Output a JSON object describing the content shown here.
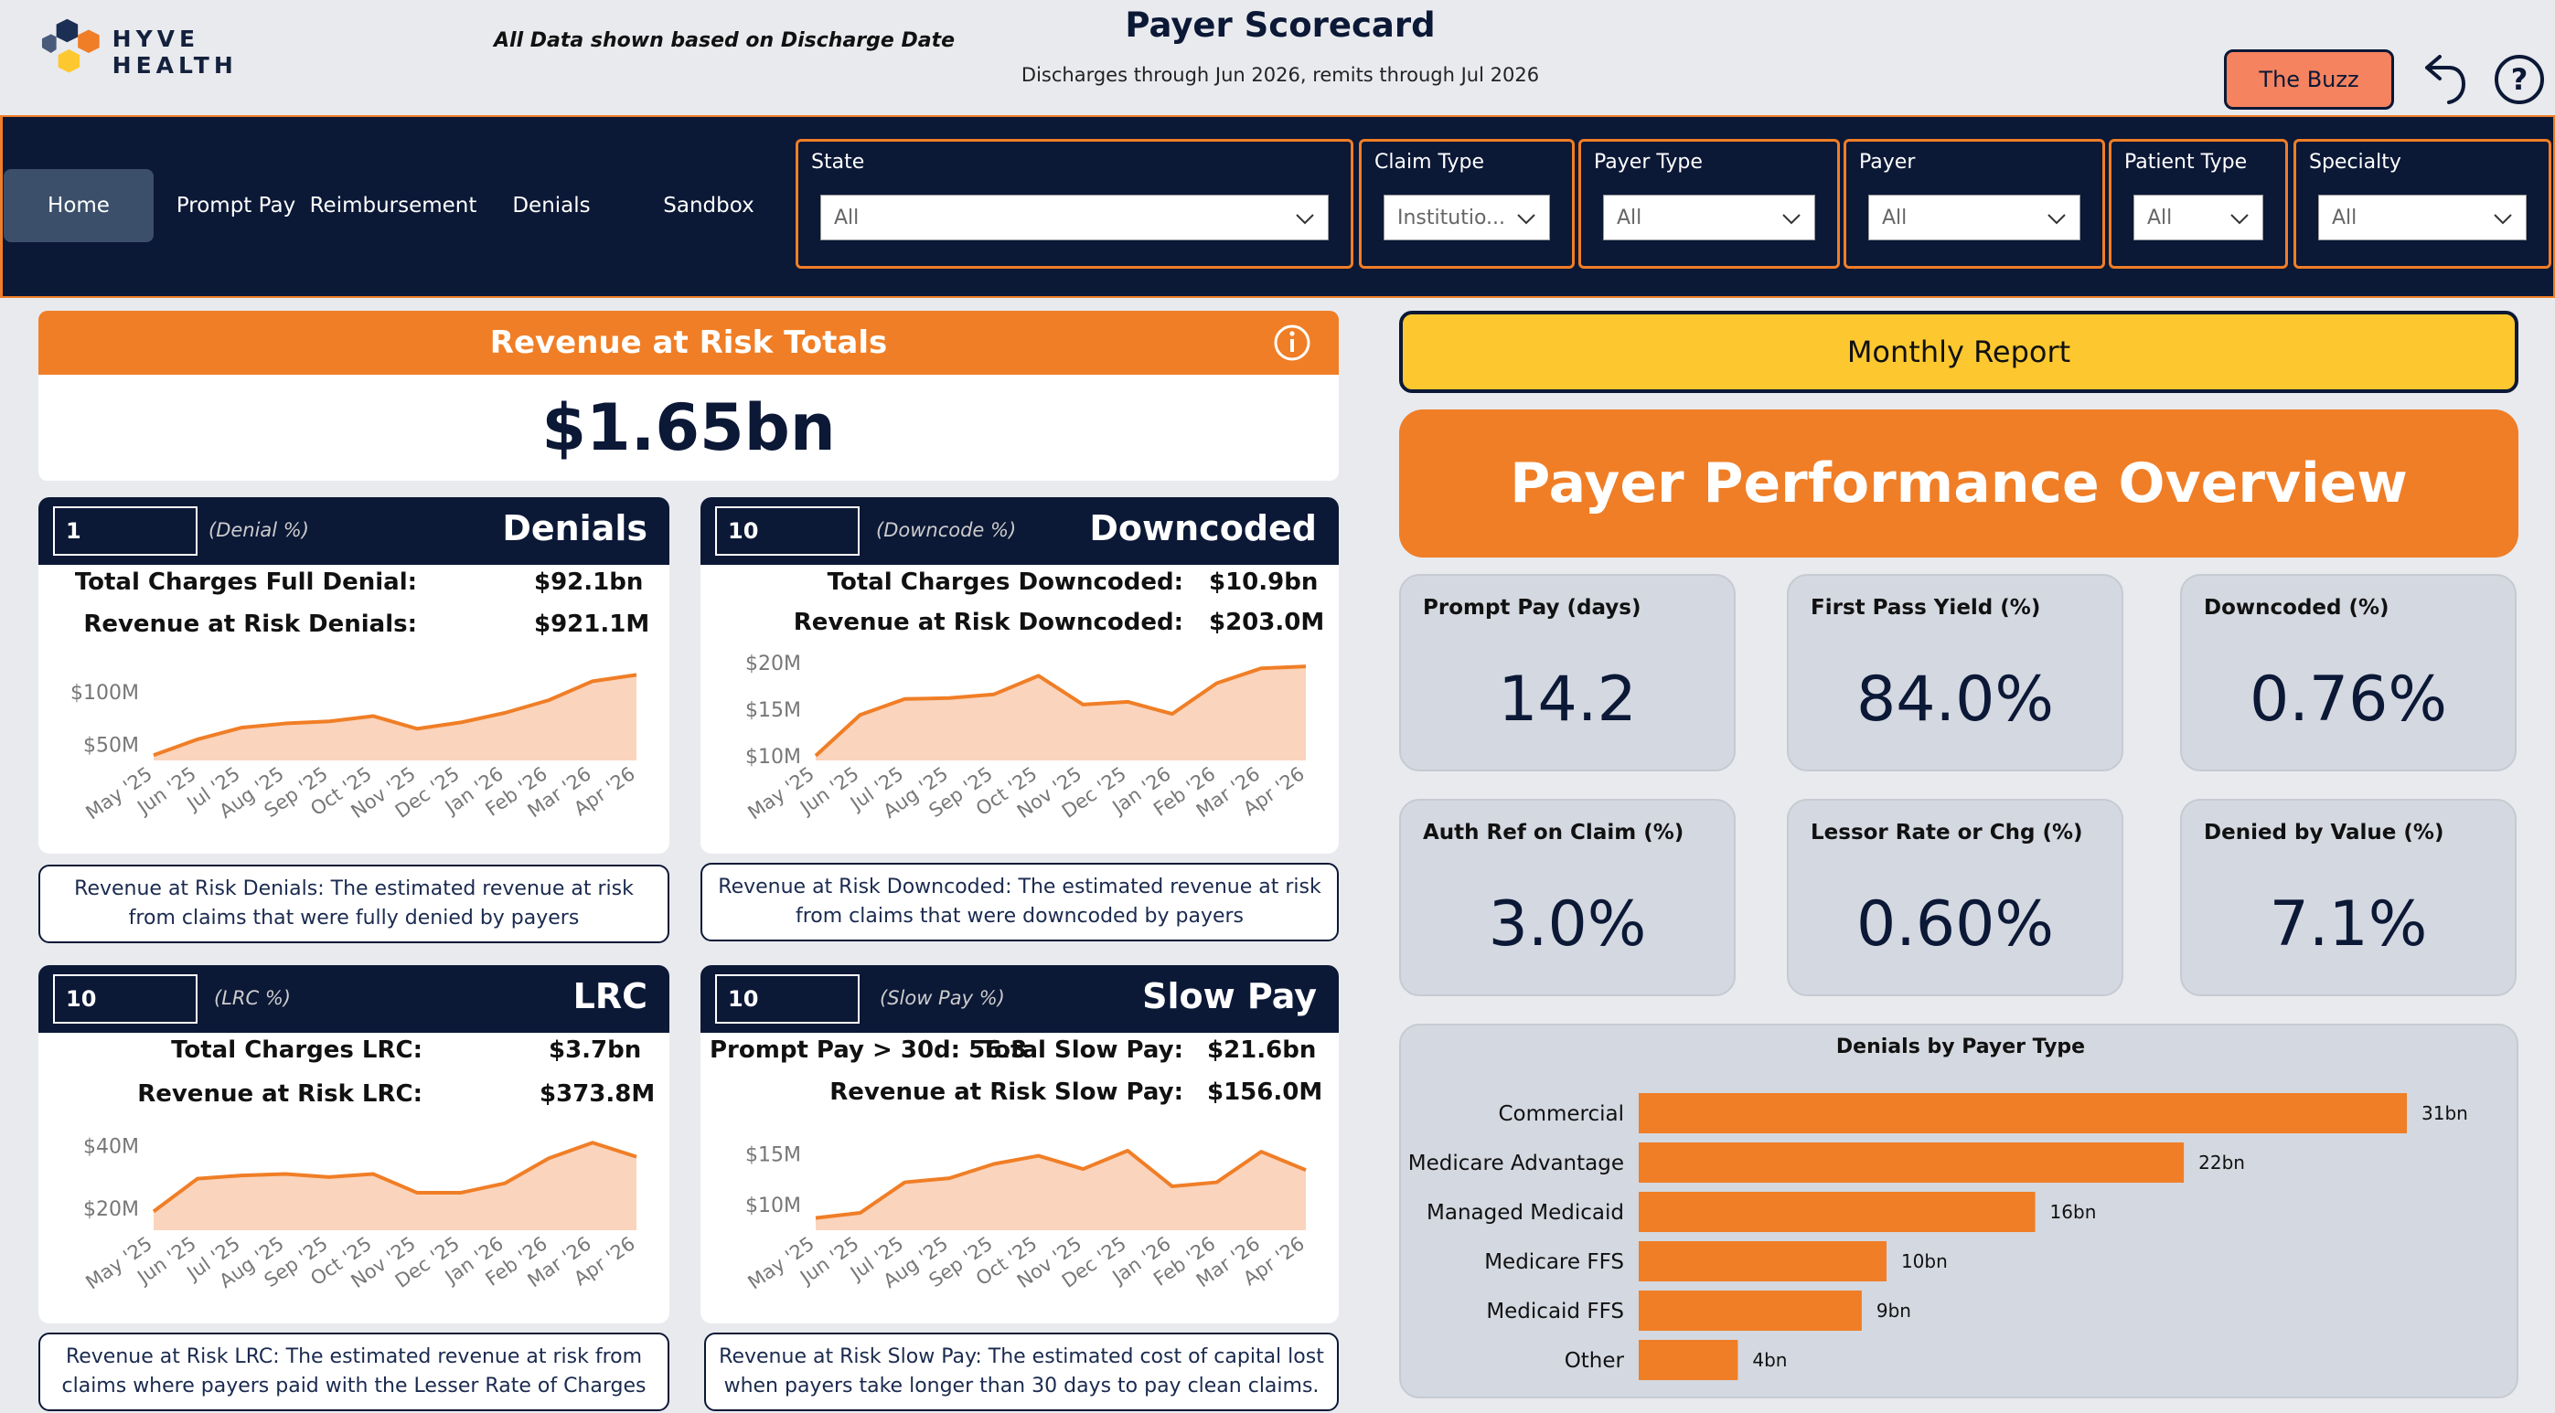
{
  "header": {
    "brand": "HYVE HEALTH",
    "data_note": "All Data shown based on Discharge Date",
    "title": "Payer Scorecard",
    "subtitle": "Discharges through Jun 2026, remits through Jul 2026",
    "buzz_button": "The Buzz"
  },
  "nav": {
    "items": [
      {
        "label": "Home",
        "active": true
      },
      {
        "label": "Prompt Pay"
      },
      {
        "label": "Reimbursement"
      },
      {
        "label": "Denials"
      },
      {
        "label": "Sandbox"
      }
    ]
  },
  "filters": [
    {
      "label": "State",
      "value": "All"
    },
    {
      "label": "Claim Type",
      "value": "Institutio..."
    },
    {
      "label": "Payer Type",
      "value": "All"
    },
    {
      "label": "Payer",
      "value": "All"
    },
    {
      "label": "Patient Type",
      "value": "All"
    },
    {
      "label": "Specialty",
      "value": "All"
    }
  ],
  "revenue_at_risk": {
    "title": "Revenue at Risk Totals",
    "total": "$1.65bn"
  },
  "cards": {
    "denials": {
      "input": "1",
      "sub": "(Denial %)",
      "title": "Denials",
      "stat1_label": "Total Charges Full Denial:",
      "stat1_value": "$92.1bn",
      "stat2_label": "Revenue at Risk Denials:",
      "stat2_value": "$921.1M",
      "desc": "Revenue at Risk Denials: The estimated revenue at risk from claims that were fully denied by payers"
    },
    "downcoded": {
      "input": "10",
      "sub": "(Downcode %)",
      "title": "Downcoded",
      "stat1_label": "Total Charges Downcoded:",
      "stat1_value": "$10.9bn",
      "stat2_label": "Revenue at Risk Downcoded:",
      "stat2_value": "$203.0M",
      "desc": "Revenue at Risk Downcoded: The estimated revenue at risk from claims that were downcoded by payers"
    },
    "lrc": {
      "input": "10",
      "sub": "(LRC %)",
      "title": "LRC",
      "stat1_label": "Total Charges LRC:",
      "stat1_value": "$3.7bn",
      "stat2_label": "Revenue at Risk LRC:",
      "stat2_value": "$373.8M",
      "desc": "Revenue at Risk LRC: The estimated revenue at risk from claims where payers paid with the Lesser Rate of Charges"
    },
    "slowpay": {
      "input": "10",
      "sub": "(Slow Pay %)",
      "title": "Slow Pay",
      "stat0_label": "Prompt Pay > 30d: 56.3",
      "stat1_label": "Total Slow Pay:",
      "stat1_value": "$21.6bn",
      "stat2_label": "Revenue at Risk Slow Pay:",
      "stat2_value": "$156.0M",
      "desc": "Revenue at Risk Slow Pay: The estimated cost of capital lost when payers take longer than 30 days to pay clean claims."
    }
  },
  "monthly_report_button": "Monthly Report",
  "overview_title": "Payer Performance Overview",
  "kpis": [
    {
      "label": "Prompt Pay (days)",
      "value": "14.2"
    },
    {
      "label": "First Pass Yield (%)",
      "value": "84.0%"
    },
    {
      "label": "Downcoded (%)",
      "value": "0.76%"
    },
    {
      "label": "Auth Ref on Claim (%)",
      "value": "3.0%"
    },
    {
      "label": "Lessor Rate or Chg (%)",
      "value": "0.60%"
    },
    {
      "label": "Denied by Value (%)",
      "value": "7.1%"
    }
  ],
  "colors": {
    "navy": "#0b1836",
    "orange": "#f07e26",
    "area_fill": "#fad4bd",
    "yellow": "#fdc82f"
  },
  "chart_data": [
    {
      "id": "denials",
      "type": "area",
      "x": [
        "May '25",
        "Jun '25",
        "Jul '25",
        "Aug '25",
        "Sep '25",
        "Oct '25",
        "Nov '25",
        "Dec '25",
        "Jan '26",
        "Feb '26",
        "Mar '26",
        "Apr '26"
      ],
      "y": [
        40,
        55,
        66,
        70,
        72,
        77,
        65,
        71,
        80,
        92,
        110,
        116
      ],
      "yticks": [
        {
          "v": 50,
          "label": "$50M"
        },
        {
          "v": 100,
          "label": "$100M"
        }
      ],
      "ylim": [
        35,
        125
      ]
    },
    {
      "id": "downcoded",
      "type": "area",
      "x": [
        "May '25",
        "Jun '25",
        "Jul '25",
        "Aug '25",
        "Sep '25",
        "Oct '25",
        "Nov '25",
        "Dec '25",
        "Jan '26",
        "Feb '26",
        "Mar '26",
        "Apr '26"
      ],
      "y": [
        10.0,
        14.4,
        16.1,
        16.2,
        16.6,
        18.6,
        15.5,
        15.8,
        14.5,
        17.8,
        19.4,
        19.6
      ],
      "yticks": [
        {
          "v": 10,
          "label": "$10M"
        },
        {
          "v": 15,
          "label": "$15M"
        },
        {
          "v": 20,
          "label": "$20M"
        }
      ],
      "ylim": [
        9.5,
        20.5
      ]
    },
    {
      "id": "lrc",
      "type": "area",
      "x": [
        "May '25",
        "Jun '25",
        "Jul '25",
        "Aug '25",
        "Sep '25",
        "Oct '25",
        "Nov '25",
        "Dec '25",
        "Jan '26",
        "Feb '26",
        "Mar '26",
        "Apr '26"
      ],
      "y": [
        19,
        29.5,
        30.5,
        31,
        30,
        31,
        25,
        25,
        28,
        36,
        41,
        36.5
      ],
      "yticks": [
        {
          "v": 20,
          "label": "$20M"
        },
        {
          "v": 40,
          "label": "$40M"
        }
      ],
      "ylim": [
        13,
        44
      ]
    },
    {
      "id": "slowpay",
      "type": "area",
      "x": [
        "May '25",
        "Jun '25",
        "Jul '25",
        "Aug '25",
        "Sep '25",
        "Oct '25",
        "Nov '25",
        "Dec '25",
        "Jan '26",
        "Feb '26",
        "Mar '26",
        "Apr '26"
      ],
      "y": [
        8.7,
        9.2,
        12.2,
        12.6,
        14.0,
        14.8,
        13.5,
        15.3,
        11.8,
        12.2,
        15.2,
        13.4
      ],
      "yticks": [
        {
          "v": 10,
          "label": "$10M"
        },
        {
          "v": 15,
          "label": "$15M"
        }
      ],
      "ylim": [
        7.5,
        17
      ]
    },
    {
      "id": "payer_type",
      "type": "bar",
      "title": "Denials by Payer Type",
      "categories": [
        "Commercial",
        "Medicare Advantage",
        "Managed Medicaid",
        "Medicare FFS",
        "Medicaid FFS",
        "Other"
      ],
      "values": [
        31,
        22,
        16,
        10,
        9,
        4
      ],
      "labels": [
        "31bn",
        "22bn",
        "16bn",
        "10bn",
        "9bn",
        "4bn"
      ]
    }
  ]
}
